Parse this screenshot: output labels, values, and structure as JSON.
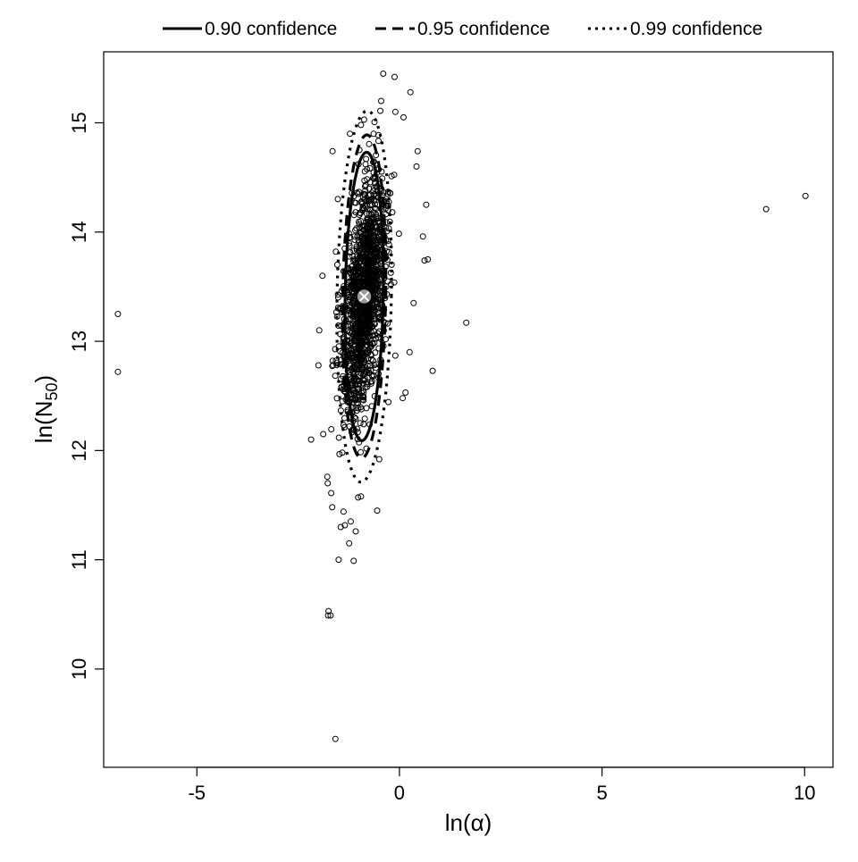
{
  "chart_data": {
    "type": "scatter",
    "title": "",
    "xlabel": "ln(α)",
    "ylabel_main": "ln(N",
    "ylabel_sub": "50",
    "ylabel_close": ")",
    "xlim": [
      -7.3,
      10.7
    ],
    "ylim": [
      9.1,
      15.65
    ],
    "xticks": [
      -5,
      0,
      5,
      10
    ],
    "yticks": [
      10,
      11,
      12,
      13,
      14,
      15
    ],
    "grid": false,
    "legend_position": "top",
    "legend": [
      {
        "label": "0.90 confidence",
        "style": "solid"
      },
      {
        "label": "0.95 confidence",
        "style": "dashed"
      },
      {
        "label": "0.99 confidence",
        "style": "dotted"
      }
    ],
    "center_estimate": {
      "x": -0.87,
      "y": 13.41,
      "color": "#9a9a9a"
    },
    "ellipses": [
      {
        "level": 0.9,
        "style": "solid",
        "cx": -0.87,
        "cy": 13.41,
        "rx": 0.47,
        "ry": 1.32,
        "tilt": 0.045
      },
      {
        "level": 0.95,
        "style": "dashed",
        "cx": -0.87,
        "cy": 13.41,
        "rx": 0.53,
        "ry": 1.48,
        "tilt": 0.045
      },
      {
        "level": 0.99,
        "style": "dotted",
        "cx": -0.87,
        "cy": 13.41,
        "rx": 0.67,
        "ry": 1.7,
        "tilt": 0.045
      }
    ],
    "bootstrap_cloud": {
      "n": 1400,
      "mean_x": -0.87,
      "mean_y": 13.41,
      "sd_x": 0.27,
      "sd_y": 0.55,
      "rho": 0.45
    },
    "outlier_points": [
      {
        "x": -6.95,
        "y": 13.25
      },
      {
        "x": -6.95,
        "y": 12.72
      },
      {
        "x": 9.05,
        "y": 14.21
      },
      {
        "x": 10.02,
        "y": 14.33
      },
      {
        "x": 1.65,
        "y": 13.17
      },
      {
        "x": 0.82,
        "y": 12.73
      },
      {
        "x": -2.18,
        "y": 12.1
      },
      {
        "x": -1.58,
        "y": 9.36
      },
      {
        "x": -1.75,
        "y": 10.53
      },
      {
        "x": -1.76,
        "y": 10.49
      },
      {
        "x": -1.7,
        "y": 10.49
      },
      {
        "x": -1.5,
        "y": 11.0
      },
      {
        "x": -1.13,
        "y": 10.99
      },
      {
        "x": -0.55,
        "y": 11.45
      },
      {
        "x": -1.02,
        "y": 11.57
      },
      {
        "x": -0.95,
        "y": 11.58
      },
      {
        "x": -1.24,
        "y": 11.15
      },
      {
        "x": -1.08,
        "y": 11.26
      },
      {
        "x": -1.45,
        "y": 11.3
      },
      {
        "x": -1.66,
        "y": 11.48
      },
      {
        "x": -1.77,
        "y": 11.7
      },
      {
        "x": -1.78,
        "y": 11.76
      },
      {
        "x": -1.2,
        "y": 11.35
      },
      {
        "x": -1.38,
        "y": 11.44
      },
      {
        "x": -0.4,
        "y": 15.45
      },
      {
        "x": -0.12,
        "y": 15.42
      },
      {
        "x": 0.27,
        "y": 15.28
      },
      {
        "x": -0.45,
        "y": 15.2
      },
      {
        "x": -0.1,
        "y": 15.1
      },
      {
        "x": 0.1,
        "y": 15.05
      },
      {
        "x": -0.95,
        "y": 14.98
      },
      {
        "x": -1.22,
        "y": 14.9
      },
      {
        "x": -1.65,
        "y": 14.74
      },
      {
        "x": 0.45,
        "y": 14.74
      },
      {
        "x": 0.42,
        "y": 14.6
      },
      {
        "x": 0.66,
        "y": 14.25
      },
      {
        "x": 0.7,
        "y": 13.75
      },
      {
        "x": 0.58,
        "y": 13.96
      },
      {
        "x": 0.62,
        "y": 13.74
      },
      {
        "x": 0.35,
        "y": 13.35
      },
      {
        "x": 0.25,
        "y": 12.9
      },
      {
        "x": 0.15,
        "y": 12.53
      },
      {
        "x": 0.08,
        "y": 12.48
      },
      {
        "x": -0.5,
        "y": 11.92
      },
      {
        "x": -1.88,
        "y": 12.15
      },
      {
        "x": -2.0,
        "y": 12.78
      },
      {
        "x": -1.9,
        "y": 13.6
      },
      {
        "x": -1.98,
        "y": 13.1
      }
    ]
  }
}
